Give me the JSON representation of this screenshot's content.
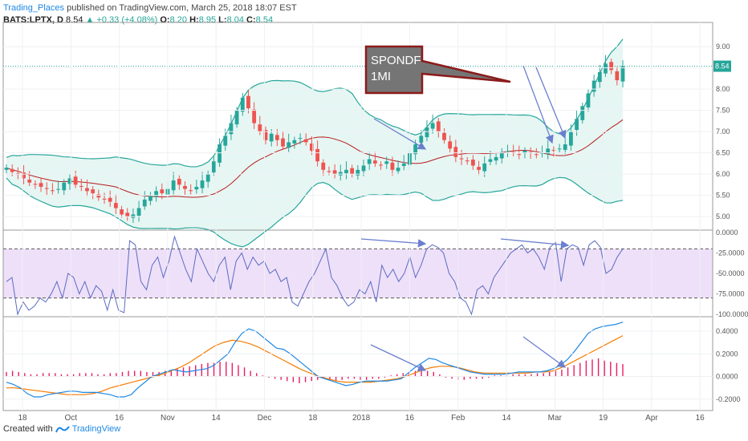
{
  "header": {
    "publisher": "Trading_Places",
    "published_text": "published on TradingView.com, March 25, 2018 18:07 EST",
    "symbol": "BATS:LPTX, D",
    "last": "8.54",
    "change": "▲ +0.33 (+4.08%)",
    "o_label": "O:",
    "o": "8.20",
    "h_label": "H:",
    "h": "8.95",
    "l_label": "L:",
    "l": "8.04",
    "c_label": "C:",
    "c": "8.54"
  },
  "footer": {
    "created_with": "Created with",
    "brand": "TradingView"
  },
  "annotation": {
    "line1": "SPONDF",
    "line2": "1MI"
  },
  "colors": {
    "up": "#26a69a",
    "down": "#ef5350",
    "bb": "#26a69a",
    "bb_fill": "#e6f6f3",
    "basis": "#b71c1c",
    "wr": "#5c6bc0",
    "wr_band": "#eee0f9",
    "macd": "#1e88e5",
    "signal": "#f57c00",
    "hist": "#e91e63",
    "arrow": "#6a7fcf",
    "callout_fill": "#757575",
    "callout_border": "#8b1a1a"
  },
  "chart_data": [
    {
      "type": "candlestick",
      "panel": "price",
      "ylim": [
        4.7,
        9.4
      ],
      "yticks": [
        "9.00",
        "8.50",
        "8.00",
        "7.50",
        "7.00",
        "6.50",
        "6.00",
        "5.50",
        "5.00"
      ],
      "last_price_label": "8.54",
      "xlabels": [
        "18",
        "Oct",
        "16",
        "Nov",
        "14",
        "Dec",
        "18",
        "2018",
        "16",
        "Feb",
        "14",
        "Mar",
        "19",
        "Apr",
        "16"
      ],
      "series": [
        {
          "name": "Price",
          "close": [
            6.15,
            6.05,
            6.0,
            5.9,
            5.8,
            5.75,
            5.7,
            5.65,
            5.6,
            5.65,
            5.8,
            5.9,
            5.75,
            5.7,
            5.6,
            5.55,
            5.45,
            5.4,
            5.35,
            5.2,
            5.05,
            5.0,
            5.05,
            5.2,
            5.4,
            5.5,
            5.6,
            5.55,
            5.65,
            5.85,
            5.75,
            5.65,
            5.6,
            5.7,
            5.85,
            6.0,
            6.3,
            6.7,
            6.9,
            7.2,
            7.5,
            7.8,
            7.55,
            7.2,
            7.0,
            6.8,
            6.95,
            6.8,
            6.65,
            6.75,
            6.8,
            6.85,
            6.75,
            6.55,
            6.3,
            6.1,
            6.05,
            6.0,
            6.05,
            6.1,
            6.0,
            6.1,
            6.2,
            6.35,
            6.25,
            6.2,
            6.3,
            6.1,
            6.15,
            6.25,
            6.5,
            6.7,
            6.9,
            7.1,
            7.2,
            7.0,
            6.8,
            6.6,
            6.4,
            6.35,
            6.3,
            6.2,
            6.1,
            6.25,
            6.35,
            6.4,
            6.5,
            6.55,
            6.5,
            6.45,
            6.55,
            6.5,
            6.45,
            6.5,
            6.6,
            6.55,
            6.6,
            6.7,
            7.0,
            7.3,
            7.6,
            7.9,
            8.2,
            8.4,
            8.6,
            8.45,
            8.21,
            8.54
          ]
        }
      ],
      "indicators": [
        "Bollinger Bands",
        "Basis (moving average)"
      ]
    },
    {
      "type": "line",
      "panel": "williams_r",
      "ylim": [
        -102,
        2
      ],
      "yticks": [
        "0.0000",
        "-25.0000",
        "-50.0000",
        "-75.0000",
        "-100.0000"
      ],
      "levels": [
        -20,
        -80
      ],
      "series": [
        {
          "name": "%R",
          "values": [
            -60,
            -55,
            -100,
            -85,
            -95,
            -90,
            -80,
            -85,
            -75,
            -60,
            -80,
            -50,
            -55,
            -75,
            -60,
            -80,
            -65,
            -72,
            -95,
            -70,
            -95,
            -98,
            -10,
            -15,
            -60,
            -70,
            -40,
            -30,
            -55,
            -35,
            -5,
            -25,
            -45,
            -60,
            -20,
            -35,
            -50,
            -60,
            -40,
            -30,
            -70,
            -35,
            -25,
            -45,
            -30,
            -40,
            -35,
            -50,
            -45,
            -60,
            -55,
            -85,
            -90,
            -75,
            -60,
            -50,
            -35,
            -20,
            -55,
            -65,
            -80,
            -90,
            -85,
            -70,
            -75,
            -60,
            -85,
            -40,
            -55,
            -45,
            -60,
            -50,
            -30,
            -55,
            -40,
            -20,
            -15,
            -18,
            -25,
            -50,
            -60,
            -80,
            -85,
            -100,
            -70,
            -65,
            -75,
            -55,
            -45,
            -35,
            -25,
            -20,
            -15,
            -25,
            -20,
            -30,
            -45,
            -18,
            -12,
            -60,
            -20,
            -15,
            -18,
            -40,
            -15,
            -10,
            -18,
            -50,
            -45,
            -30,
            -20
          ]
        }
      ]
    },
    {
      "type": "line",
      "panel": "macd",
      "ylim": [
        -0.3,
        0.52
      ],
      "yticks": [
        "0.4000",
        "0.2000",
        "0.0000",
        "-0.2000"
      ],
      "series": [
        {
          "name": "MACD",
          "values": [
            -0.05,
            -0.07,
            -0.1,
            -0.15,
            -0.18,
            -0.18,
            -0.16,
            -0.15,
            -0.14,
            -0.13,
            -0.13,
            -0.14,
            -0.14,
            -0.14,
            -0.15,
            -0.16,
            -0.18,
            -0.18,
            -0.16,
            -0.1,
            -0.05,
            0.0,
            0.02,
            0.04,
            0.06,
            0.05,
            0.04,
            0.05,
            0.06,
            0.07,
            0.1,
            0.15,
            0.2,
            0.3,
            0.38,
            0.42,
            0.4,
            0.35,
            0.3,
            0.25,
            0.24,
            0.2,
            0.15,
            0.1,
            0.05,
            0.0,
            -0.02,
            -0.04,
            -0.06,
            -0.08,
            -0.07,
            -0.05,
            -0.04,
            -0.04,
            -0.04,
            -0.04,
            -0.03,
            -0.02,
            0.03,
            0.08,
            0.12,
            0.16,
            0.15,
            0.12,
            0.1,
            0.08,
            0.06,
            0.04,
            0.03,
            0.02,
            0.02,
            0.02,
            0.02,
            0.03,
            0.04,
            0.04,
            0.04,
            0.04,
            0.05,
            0.07,
            0.1,
            0.15,
            0.22,
            0.3,
            0.38,
            0.42,
            0.44,
            0.45,
            0.46,
            0.48
          ]
        },
        {
          "name": "Signal",
          "values": [
            -0.1,
            -0.1,
            -0.11,
            -0.12,
            -0.13,
            -0.14,
            -0.15,
            -0.16,
            -0.16,
            -0.16,
            -0.15,
            -0.13,
            -0.1,
            -0.08,
            -0.06,
            -0.04,
            -0.02,
            0.0,
            0.02,
            0.05,
            0.08,
            0.12,
            0.17,
            0.22,
            0.27,
            0.3,
            0.32,
            0.31,
            0.29,
            0.26,
            0.22,
            0.18,
            0.14,
            0.1,
            0.06,
            0.03,
            0.0,
            -0.02,
            -0.04,
            -0.05,
            -0.05,
            -0.05,
            -0.05,
            -0.04,
            -0.03,
            -0.02,
            0.0,
            0.03,
            0.06,
            0.08,
            0.09,
            0.09,
            0.08,
            0.06,
            0.04,
            0.03,
            0.03,
            0.03,
            0.03,
            0.03,
            0.03,
            0.04,
            0.04,
            0.05,
            0.08,
            0.12,
            0.16,
            0.2,
            0.24,
            0.28,
            0.32,
            0.36
          ]
        },
        {
          "name": "Histogram",
          "values": [
            0.04,
            0.05,
            0.04,
            0.03,
            0.02,
            0.02,
            0.03,
            0.03,
            0.03,
            0.02,
            0.02,
            0.02,
            0.03,
            0.03,
            0.03,
            0.02,
            0.02,
            0.03,
            0.03,
            0.04,
            0.05,
            0.05,
            0.05,
            0.04,
            0.04,
            0.04,
            0.05,
            0.06,
            0.07,
            0.08,
            0.09,
            0.1,
            0.11,
            0.12,
            0.12,
            0.13,
            0.13,
            0.12,
            0.1,
            0.08,
            0.05,
            0.03,
            0.01,
            -0.01,
            -0.02,
            -0.03,
            -0.04,
            -0.05,
            -0.06,
            -0.05,
            -0.04,
            -0.03,
            -0.02,
            -0.03,
            -0.04,
            -0.03,
            -0.02,
            -0.02,
            -0.03,
            -0.03,
            -0.02,
            -0.02,
            -0.01,
            0.01,
            0.02,
            0.03,
            0.04,
            0.05,
            0.06,
            0.05,
            0.04,
            0.02,
            -0.01,
            -0.02,
            -0.03,
            -0.03,
            -0.02,
            -0.02,
            -0.02,
            -0.01,
            0.01,
            0.01,
            0.01,
            0.02,
            0.02,
            0.02,
            0.02,
            0.03,
            0.03,
            0.04,
            0.05,
            0.06,
            0.08,
            0.1,
            0.12,
            0.14,
            0.15,
            0.16,
            0.14,
            0.13,
            0.12,
            0.11
          ]
        }
      ]
    }
  ]
}
